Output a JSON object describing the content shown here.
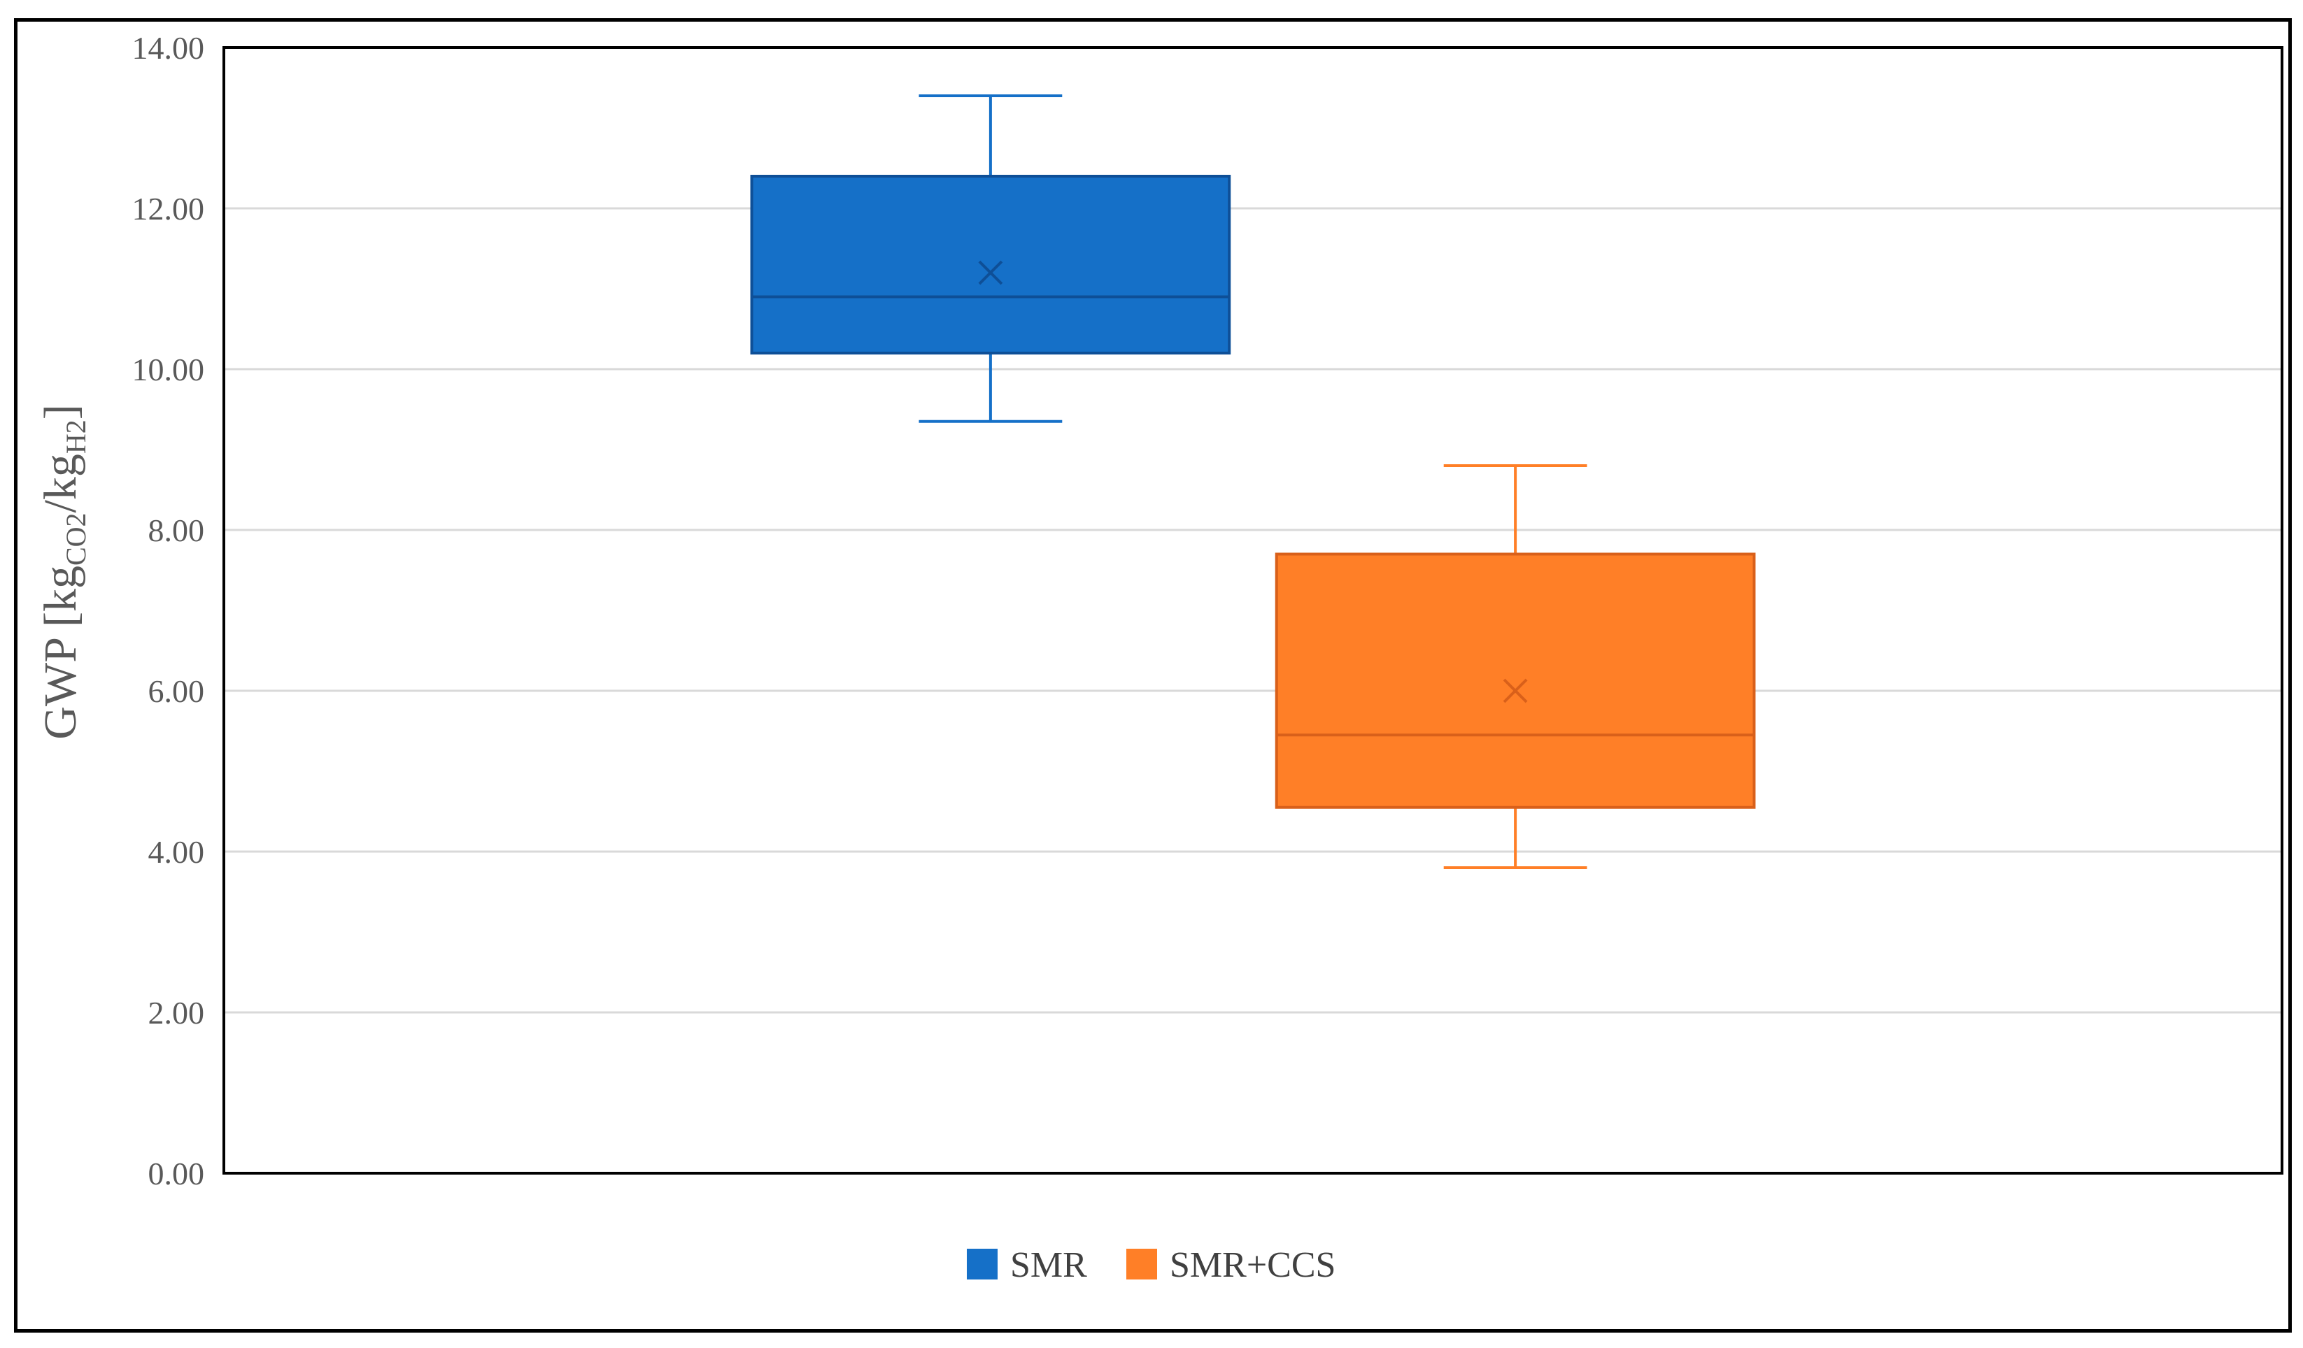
{
  "chart_data": {
    "type": "box",
    "ylabel": {
      "main": "GWP [kg",
      "sub1": "CO2",
      "mid": "/kg",
      "sub2": "H2",
      "end": "]"
    },
    "ylim": [
      0,
      14
    ],
    "yticks": [
      "0.00",
      "2.00",
      "4.00",
      "6.00",
      "8.00",
      "10.00",
      "12.00",
      "14.00"
    ],
    "grid": true,
    "legend_position": "bottom",
    "series": [
      {
        "name": "SMR",
        "color": "#1570C8",
        "line_color": "#0E4F97",
        "min": 9.35,
        "q1": 10.2,
        "median": 10.9,
        "mean": 11.2,
        "q3": 12.4,
        "max": 13.4
      },
      {
        "name": "SMR+CCS",
        "color": "#FF7F27",
        "line_color": "#D9601A",
        "min": 3.8,
        "q1": 4.55,
        "median": 5.45,
        "mean": 6.0,
        "q3": 7.7,
        "max": 8.8
      }
    ]
  }
}
